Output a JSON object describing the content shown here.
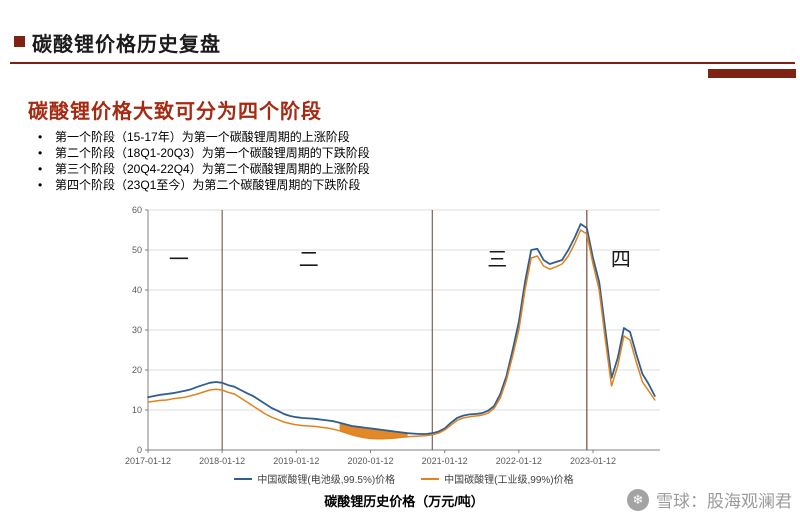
{
  "slide": {
    "title": "碳酸锂价格历史复盘",
    "section_heading": "碳酸锂价格大致可分为四个阶段",
    "bullets": [
      "第一个阶段（15-17年）为第一个碳酸锂周期的上涨阶段",
      "第二个阶段（18Q1-20Q3）为第一个碳酸锂周期的下跌阶段",
      "第三个阶段（20Q4-22Q4）为第二个碳酸锂周期的上涨阶段",
      "第四个阶段（23Q1至今）为第二个碳酸锂周期的下跌阶段"
    ],
    "accent_color": "#7e2213",
    "heading_color": "#a62a12"
  },
  "watermark": {
    "icon": "snowflake-logo",
    "icon_glyph": "❄",
    "text": "雪球：股海观澜君",
    "color": "#9b9b9b"
  },
  "chart_data": {
    "type": "line",
    "title": "碳酸锂历史价格（万元/吨）",
    "xlabel": "",
    "ylabel": "",
    "x_unit": "months since 2017-01",
    "ylim": [
      0,
      60
    ],
    "yticks": [
      0,
      10,
      20,
      30,
      40,
      50,
      60
    ],
    "grid": "horizontal",
    "legend_position": "bottom",
    "x_tick_positions": [
      0,
      12,
      24,
      36,
      48,
      60,
      72
    ],
    "x_tick_labels": [
      "2017-01-12",
      "2018-01-12",
      "2019-01-12",
      "2020-01-12",
      "2021-01-12",
      "2022-01-12",
      "2023-01-12"
    ],
    "x": [
      0,
      1,
      2,
      3,
      4,
      5,
      6,
      7,
      8,
      9,
      10,
      11,
      12,
      13,
      14,
      15,
      16,
      17,
      18,
      19,
      20,
      21,
      22,
      23,
      24,
      25,
      26,
      27,
      28,
      29,
      30,
      31,
      32,
      33,
      34,
      35,
      36,
      37,
      38,
      39,
      40,
      41,
      42,
      43,
      44,
      45,
      46,
      47,
      48,
      49,
      50,
      51,
      52,
      53,
      54,
      55,
      56,
      57,
      58,
      59,
      60,
      61,
      62,
      63,
      64,
      65,
      66,
      67,
      68,
      69,
      70,
      71,
      72,
      73,
      74,
      75,
      76,
      77,
      78,
      79,
      80,
      81,
      82
    ],
    "series": [
      {
        "name": "中国碳酸锂(电池级,99.5%)价格",
        "color": "#2f5e8f",
        "values": [
          13.2,
          13.5,
          13.8,
          14,
          14.2,
          14.5,
          14.8,
          15.2,
          15.8,
          16.3,
          16.8,
          17,
          16.8,
          16.2,
          15.8,
          15,
          14.2,
          13.5,
          12.5,
          11.5,
          10.5,
          9.8,
          9,
          8.5,
          8.2,
          8,
          7.9,
          7.8,
          7.6,
          7.4,
          7.2,
          6.8,
          6.4,
          6,
          5.8,
          5.6,
          5.4,
          5.2,
          5,
          4.8,
          4.6,
          4.4,
          4.2,
          4.1,
          4,
          4,
          4.2,
          4.6,
          5.4,
          6.8,
          8,
          8.6,
          8.9,
          9,
          9.2,
          9.8,
          11,
          14,
          18.5,
          25,
          32,
          42,
          50,
          50.3,
          47.5,
          46.5,
          47,
          47.5,
          50,
          53,
          56.5,
          55.5,
          48,
          42,
          30,
          18,
          23,
          30.5,
          29.5,
          24,
          19,
          16.5,
          13.5
        ]
      },
      {
        "name": "中国碳酸锂(工业级,99%)价格",
        "color": "#e2821c",
        "values": [
          12,
          12.2,
          12.4,
          12.5,
          12.8,
          13,
          13.2,
          13.6,
          14,
          14.5,
          15,
          15.2,
          15,
          14.4,
          14,
          13,
          12,
          11,
          10,
          9,
          8.2,
          7.6,
          7,
          6.6,
          6.3,
          6.1,
          6,
          5.9,
          5.7,
          5.5,
          5.2,
          4.8,
          4.3,
          3.8,
          3.4,
          3.1,
          2.9,
          2.8,
          2.8,
          2.9,
          3,
          3.2,
          3.3,
          3.4,
          3.5,
          3.6,
          3.8,
          4.2,
          5,
          6.2,
          7.4,
          8,
          8.3,
          8.5,
          8.7,
          9.2,
          10.4,
          13,
          17.5,
          23.5,
          30,
          40,
          48,
          48.5,
          46,
          45.2,
          45.8,
          46.5,
          48.5,
          51.5,
          55,
          54,
          46.5,
          40,
          27.5,
          16,
          21,
          28.5,
          27.5,
          22,
          17,
          14.8,
          12.5
        ]
      }
    ],
    "fill_between": {
      "from_month": 31,
      "to_month": 42,
      "color": "#e2821c"
    },
    "stage_dividers": [
      {
        "month": 12,
        "color": "#75655a"
      },
      {
        "month": 46,
        "color": "#75655a"
      },
      {
        "month": 71,
        "color": "#7d4a3a"
      }
    ],
    "stage_labels": [
      {
        "text": "一",
        "month": 5,
        "value": 46
      },
      {
        "text": "二",
        "month": 26,
        "value": 46
      },
      {
        "text": "三",
        "month": 56.5,
        "value": 46
      },
      {
        "text": "四",
        "month": 76.5,
        "value": 46
      }
    ]
  }
}
